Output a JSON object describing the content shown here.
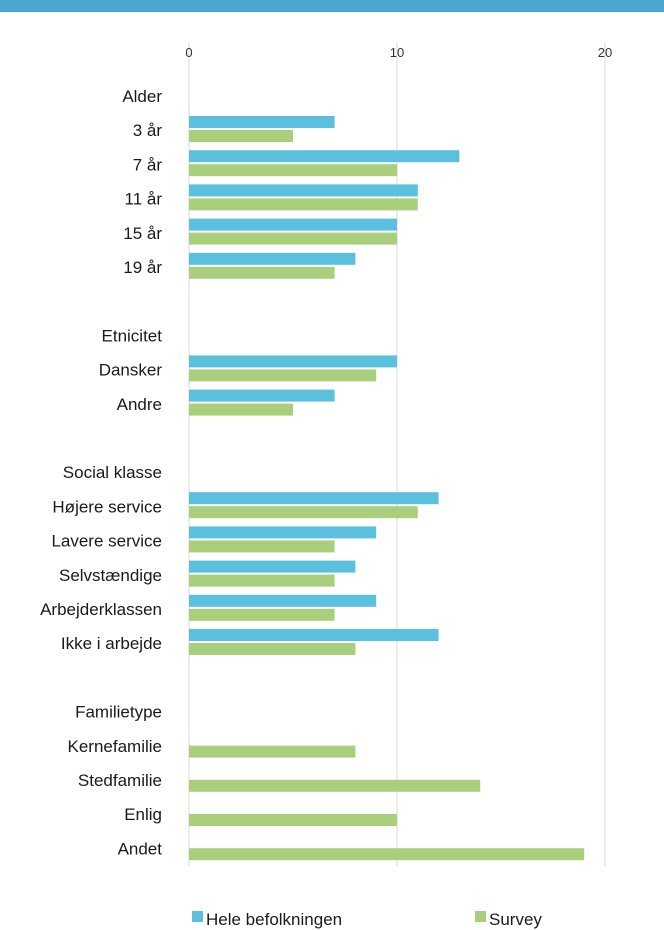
{
  "colors": {
    "top_bar": "#4aa6d1",
    "gridline": "#d9d9d9"
  },
  "chart_data": {
    "type": "bar",
    "orientation": "horizontal",
    "title": "",
    "xlabel": "",
    "ylabel": "",
    "xlim": [
      0,
      20
    ],
    "xticks": [
      "0",
      "10",
      "20"
    ],
    "x_axis_position": "top",
    "grid": true,
    "legend_position": "bottom",
    "series": [
      {
        "name": "Hele befolkningen",
        "color": "#5bc0de"
      },
      {
        "name": "Survey",
        "color": "#a9cf7c"
      }
    ],
    "rows": [
      {
        "label": "Alder",
        "heading": true
      },
      {
        "label": "3 år",
        "values": [
          7,
          5
        ]
      },
      {
        "label": "7 år",
        "values": [
          13,
          10
        ]
      },
      {
        "label": "11 år",
        "values": [
          11,
          11
        ]
      },
      {
        "label": "15 år",
        "values": [
          10,
          10
        ]
      },
      {
        "label": "19 år",
        "values": [
          8,
          7
        ]
      },
      {
        "label": "",
        "spacer": true
      },
      {
        "label": "Etnicitet",
        "heading": true
      },
      {
        "label": "Dansker",
        "values": [
          10,
          9
        ]
      },
      {
        "label": "Andre",
        "values": [
          7,
          5
        ]
      },
      {
        "label": "",
        "spacer": true
      },
      {
        "label": "Social klasse",
        "heading": true
      },
      {
        "label": "Højere service",
        "values": [
          12,
          11
        ]
      },
      {
        "label": "Lavere service",
        "values": [
          9,
          7
        ]
      },
      {
        "label": "Selvstændige",
        "values": [
          8,
          7
        ]
      },
      {
        "label": "Arbejderklassen",
        "values": [
          9,
          7
        ]
      },
      {
        "label": "Ikke i arbejde",
        "values": [
          12,
          8
        ]
      },
      {
        "label": "",
        "spacer": true
      },
      {
        "label": "Familietype",
        "heading": true
      },
      {
        "label": "Kernefamilie",
        "values": [
          null,
          8
        ]
      },
      {
        "label": "Stedfamilie",
        "values": [
          null,
          14
        ]
      },
      {
        "label": "Enlig",
        "values": [
          null,
          10
        ]
      },
      {
        "label": "Andet",
        "values": [
          null,
          19
        ]
      }
    ]
  }
}
